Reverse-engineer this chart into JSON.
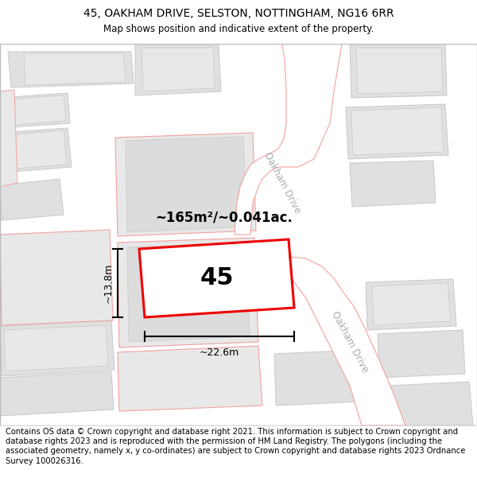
{
  "title_line1": "45, OAKHAM DRIVE, SELSTON, NOTTINGHAM, NG16 6RR",
  "title_line2": "Map shows position and indicative extent of the property.",
  "footer_text": "Contains OS data © Crown copyright and database right 2021. This information is subject to Crown copyright and database rights 2023 and is reproduced with the permission of HM Land Registry. The polygons (including the associated geometry, namely x, y co-ordinates) are subject to Crown copyright and database rights 2023 Ordnance Survey 100026316.",
  "map_bg": "#f2f2f2",
  "plot_outline_color": "#ee0000",
  "plot_fill": "#e8e8e8",
  "road_outline_color": "#f4a0a0",
  "road_fill": "#ffffff",
  "building_fill": "#e0e0e0",
  "building_outline": "#c8c8c8",
  "parcel_outline": "#f4a0a0",
  "dim_label_13_8": "~13.8m",
  "dim_label_22_6": "~22.6m",
  "area_label": "~165m²/~0.041ac.",
  "plot_number": "45",
  "road_name_1": "Oakham Drive",
  "road_name_2": "Oakham Drive",
  "title_fontsize": 10,
  "footer_fontsize": 7.2,
  "road_label_color": "#aaaaaa"
}
